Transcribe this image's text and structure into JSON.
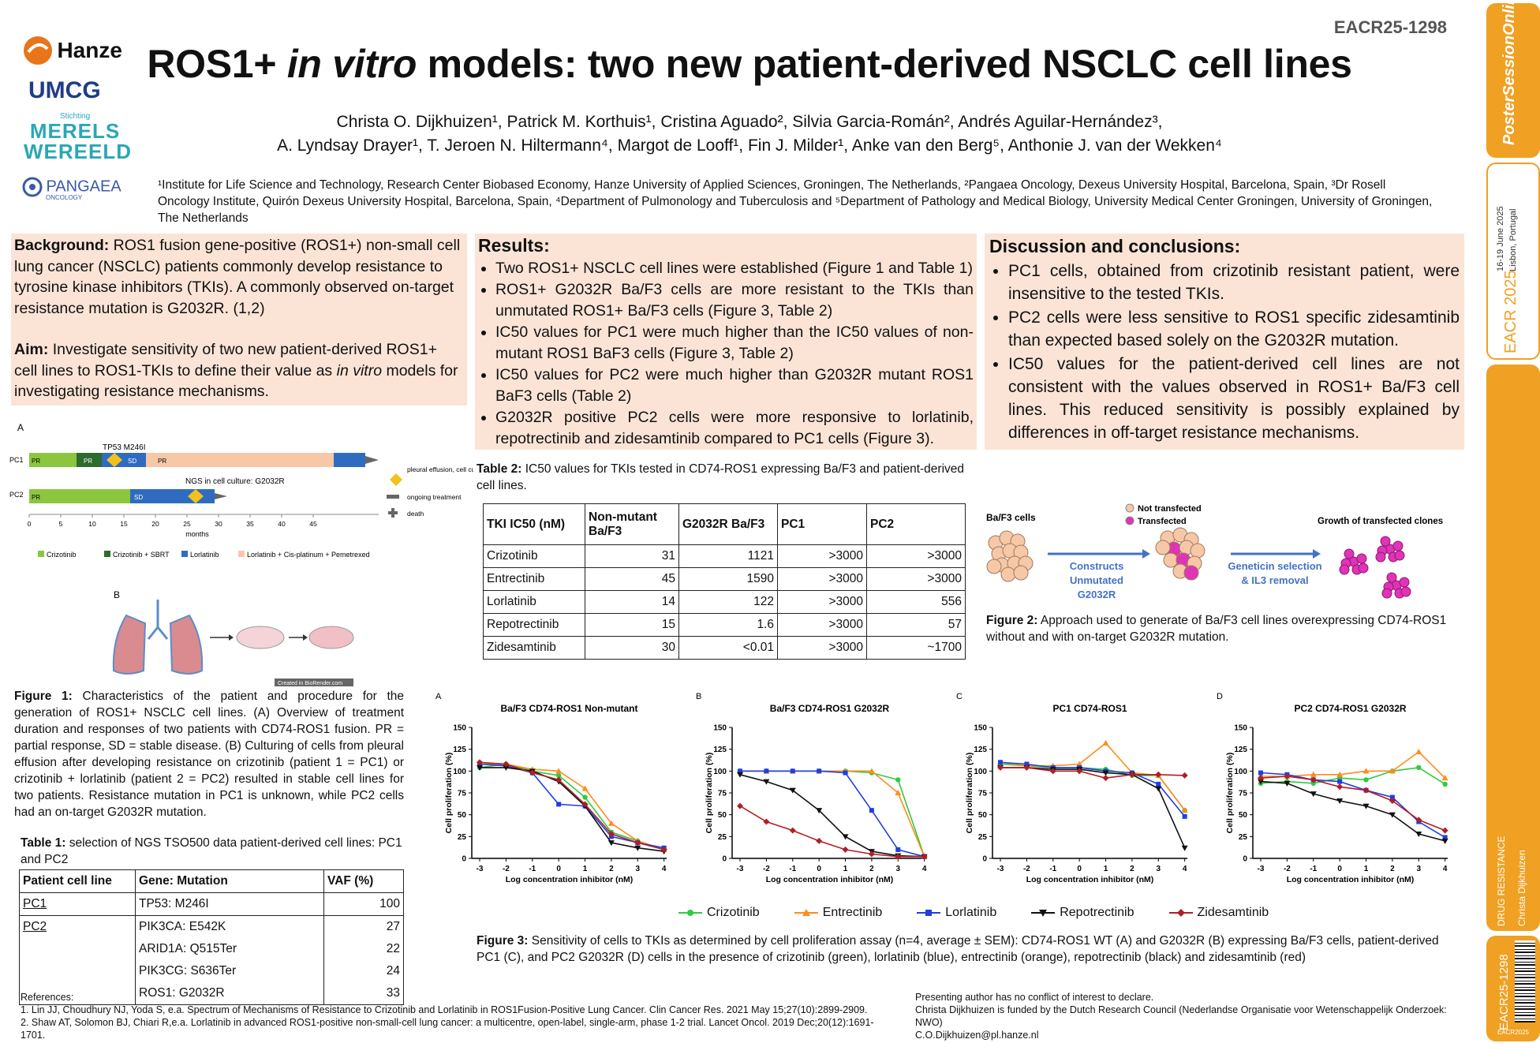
{
  "poster_code": "EACR25-1298",
  "title_parts": {
    "a": "ROS1+ ",
    "b": "in vitro",
    "c": " models: two new patient-derived NSCLC cell lines"
  },
  "logos": {
    "hanze": "Hanze",
    "umcg": "UMCG",
    "merels_small": "Stichting",
    "merels1": "MERELS",
    "merels2": "WEREELD",
    "pangaea": "PANGAEA",
    "pangaea_sub": "ONCOLOGY"
  },
  "authors_line1": "Christa O. Dijkhuizen¹, Patrick M. Korthuis¹, Cristina Aguado², Silvia Garcia-Román², Andrés Aguilar-Hernández³,",
  "authors_line2": "A. Lyndsay Drayer¹, T. Jeroen N. Hiltermann⁴, Margot de Looff¹, Fin J. Milder¹, Anke van den Berg⁵, Anthonie J. van der Wekken⁴",
  "affiliations": "¹Institute for Life Science and Technology, Research Center Biobased Economy, Hanze University of Applied Sciences, Groningen, The Netherlands, ²Pangaea Oncology, Dexeus University Hospital, Barcelona, Spain, ³Dr Rosell Oncology Institute, Quirón Dexeus University Hospital, Barcelona, Spain, ⁴Department of Pulmonology and Tuberculosis and ⁵Department of Pathology and Medical Biology, University Medical Center Groningen, University of Groningen, The Netherlands",
  "background": {
    "head": "Background:",
    "text": " ROS1 fusion gene-positive (ROS1+) non-small cell lung cancer (NSCLC) patients commonly develop resistance to tyrosine kinase inhibitors (TKIs). A commonly observed on-target resistance mutation is G2032R. (1,2)"
  },
  "aim": {
    "head": "Aim:",
    "text1": " Investigate sensitivity of two new patient-derived ROS1+ cell lines to ROS1-TKIs to define their value as ",
    "ital": "in vitro",
    "text2": " models for investigating resistance mechanisms."
  },
  "results": {
    "head": "Results:",
    "items": [
      "Two ROS1+ NSCLC cell lines were established (Figure 1 and Table 1)",
      "ROS1+ G2032R Ba/F3 cells are more resistant to the TKIs than unmutated ROS1+ Ba/F3 cells (Figure 3, Table 2)",
      "IC50 values for PC1 were much higher than the IC50 values of non-mutant ROS1 BaF3 cells (Figure 3, Table 2)",
      "IC50 values for PC2 were much higher than G2032R mutant ROS1 BaF3 cells (Table 2)",
      "G2032R positive PC2 cells were more responsive to lorlatinib, repotrectinib and zidesamtinib compared to PC1 cells (Figure 3)."
    ]
  },
  "discussion": {
    "head": "Discussion and conclusions:",
    "items": [
      "PC1 cells, obtained from crizotinib resistant patient,  were insensitive to the tested TKIs.",
      "PC2 cells were less sensitive to ROS1 specific zidesamtinib than expected based solely on the G2032R mutation.",
      "IC50 values for the patient-derived cell lines are not consistent with the values observed in ROS1+ Ba/F3 cell lines. This reduced sensitivity is possibly explained by differences in off-target resistance mechanisms."
    ]
  },
  "fig1a": {
    "panel": "A",
    "tp53": "TP53 M246I",
    "ngs": "NGS in cell culture: G2032R",
    "rows": [
      "PC1",
      "PC2"
    ],
    "xlabel": "months",
    "ticks": [
      "0",
      "5",
      "10",
      "15",
      "20",
      "25",
      "30",
      "35",
      "40",
      "45"
    ],
    "pc1_labels": [
      "PR",
      "PR",
      "SD",
      "PR"
    ],
    "pc2_labels": [
      "PR",
      "SD"
    ],
    "legend_right": [
      "pleural effusion, cell culture, NGS",
      "ongoing treatment",
      "death"
    ],
    "legend_bottom": [
      "Crizotinib",
      "Crizotinib + SBRT",
      "Lorlatinib",
      "Lorlatinib + Cis-platinum + Pemetrexed"
    ],
    "colors": {
      "crizotinib": "#8cc63f",
      "sbrt": "#2e6b2e",
      "lorlatinib": "#2f6cc0",
      "cispem": "#f6c8a8",
      "diamond": "#f2c21b"
    }
  },
  "fig1b": {
    "panel": "B",
    "credit": "Created in BioRender.com"
  },
  "fig1_caption": {
    "head": "Figure 1:",
    "text": " Characteristics of the patient and procedure for the generation of ROS1+ NSCLC cell lines. (A) Overview of treatment duration and responses of two patients with CD74-ROS1 fusion. PR = partial response, SD = stable disease. (B) Culturing of cells from pleural effusion after developing resistance on crizotinib (patient 1 = PC1) or crizotinib + lorlatinib (patient 2 = PC2) resulted in stable cell lines for two patients. Resistance mutation in PC1 is unknown, while PC2 cells had an on-target G2032R mutation."
  },
  "table1": {
    "caption_head": "Table 1:",
    "caption": " selection of NGS TSO500 data patient-derived cell lines: PC1 and PC2",
    "headers": [
      "Patient cell line",
      "Gene: Mutation",
      "VAF (%)"
    ],
    "rows": [
      [
        "PC1",
        "TP53: M246I",
        "100"
      ],
      [
        "PC2",
        "PIK3CA: E542K",
        "27"
      ],
      [
        "",
        "ARID1A: Q515Ter",
        "22"
      ],
      [
        "",
        "PIK3CG: S636Ter",
        "24"
      ],
      [
        "",
        "ROS1: G2032R",
        "33"
      ]
    ]
  },
  "table2": {
    "caption_head": "Table 2:",
    "caption": " IC50 values for TKIs tested in CD74-ROS1 expressing Ba/F3 and patient-derived cell lines.",
    "headers": [
      "TKI IC50 (nM)",
      "Non-mutant Ba/F3",
      "G2032R Ba/F3",
      "PC1",
      "PC2"
    ],
    "rows": [
      [
        "Crizotinib",
        "31",
        "1121",
        ">3000",
        ">3000"
      ],
      [
        "Entrectinib",
        "45",
        "1590",
        ">3000",
        ">3000"
      ],
      [
        "Lorlatinib",
        "14",
        "122",
        ">3000",
        "556"
      ],
      [
        "Repotrectinib",
        "15",
        "1.6",
        ">3000",
        "57"
      ],
      [
        "Zidesamtinib",
        "30",
        "<0.01",
        ">3000",
        "~1700"
      ]
    ]
  },
  "fig2": {
    "bf3": "Ba/F3 cells",
    "not_tf": "Not transfected",
    "tf": "Transfected",
    "arrow1": [
      "Constructs",
      "Unmutated",
      "G2032R"
    ],
    "arrow2": [
      "Geneticin selection",
      "& IL3 removal"
    ],
    "growth": "Growth of transfected clones",
    "caption_head": "Figure 2:",
    "caption": " Approach used to generate of Ba/F3 cell lines overexpressing CD74-ROS1 without and with on-target G2032R mutation."
  },
  "fig3_caption": {
    "head": "Figure 3:",
    "text": " Sensitivity of cells to TKIs as determined by cell proliferation assay (n=4, average ± SEM): CD74-ROS1 WT (A) and G2032R (B) expressing Ba/F3 cells, patient-derived PC1 (C), and PC2 G2032R (D) cells in the presence of crizotinib (green), lorlatinib (blue), entrectinib (orange), repotrectinib (black) and zidesamtinib (red)"
  },
  "chart_data": [
    {
      "type": "line",
      "panel": "A",
      "title": "Ba/F3 CD74-ROS1 Non-mutant",
      "xlabel": "Log concentration inhibitor (nM)",
      "ylabel": "Cell proliferation (%)",
      "x": [
        -3,
        -2,
        -1,
        0,
        1,
        2,
        3,
        4
      ],
      "xlim": [
        -3.3,
        4.1
      ],
      "ylim": [
        0,
        150
      ],
      "yticks": [
        0,
        25,
        50,
        75,
        100,
        125,
        150
      ],
      "series": [
        {
          "name": "Crizotinib",
          "color": "#2ecc40",
          "values": [
            104,
            108,
            100,
            95,
            70,
            30,
            20,
            10
          ]
        },
        {
          "name": "Entrectinib",
          "color": "#ff8c1a",
          "values": [
            108,
            108,
            102,
            100,
            80,
            40,
            20,
            10
          ]
        },
        {
          "name": "Lorlatinib",
          "color": "#1f3fe0",
          "values": [
            108,
            106,
            98,
            62,
            60,
            25,
            18,
            12
          ]
        },
        {
          "name": "Repotrectinib",
          "color": "#111111",
          "values": [
            104,
            104,
            100,
            88,
            60,
            18,
            12,
            8
          ]
        },
        {
          "name": "Zidesamtinib",
          "color": "#b01f24",
          "values": [
            110,
            108,
            98,
            90,
            62,
            28,
            18,
            10
          ]
        }
      ]
    },
    {
      "type": "line",
      "panel": "B",
      "title": "Ba/F3 CD74-ROS1 G2032R",
      "xlabel": "Log concentration inhibitor (nM)",
      "ylabel": "Cell proliferation (%)",
      "x": [
        -3,
        -2,
        -1,
        0,
        1,
        2,
        3,
        4
      ],
      "xlim": [
        -3.3,
        4.1
      ],
      "ylim": [
        0,
        150
      ],
      "yticks": [
        0,
        25,
        50,
        75,
        100,
        125,
        150
      ],
      "series": [
        {
          "name": "Crizotinib",
          "color": "#2ecc40",
          "values": [
            100,
            100,
            100,
            100,
            100,
            98,
            90,
            2
          ]
        },
        {
          "name": "Entrectinib",
          "color": "#ff8c1a",
          "values": [
            100,
            100,
            100,
            100,
            100,
            100,
            75,
            2
          ]
        },
        {
          "name": "Lorlatinib",
          "color": "#1f3fe0",
          "values": [
            100,
            100,
            100,
            100,
            98,
            55,
            10,
            2
          ]
        },
        {
          "name": "Repotrectinib",
          "color": "#111111",
          "values": [
            96,
            88,
            78,
            55,
            25,
            8,
            3,
            2
          ]
        },
        {
          "name": "Zidesamtinib",
          "color": "#b01f24",
          "values": [
            60,
            42,
            32,
            20,
            10,
            5,
            2,
            2
          ]
        }
      ]
    },
    {
      "type": "line",
      "panel": "C",
      "title": "PC1 CD74-ROS1",
      "xlabel": "Log concentration inhibitor (nM)",
      "ylabel": "Cell proliferation (%)",
      "x": [
        -3,
        -2,
        -1,
        0,
        1,
        2,
        3,
        4
      ],
      "xlim": [
        -3.3,
        4.1
      ],
      "ylim": [
        0,
        150
      ],
      "yticks": [
        0,
        25,
        50,
        75,
        100,
        125,
        150
      ],
      "series": [
        {
          "name": "Crizotinib",
          "color": "#2ecc40",
          "values": [
            108,
            106,
            104,
            104,
            102,
            95,
            95,
            55
          ]
        },
        {
          "name": "Entrectinib",
          "color": "#ff8c1a",
          "values": [
            110,
            106,
            106,
            108,
            132,
            98,
            95,
            55
          ]
        },
        {
          "name": "Lorlatinib",
          "color": "#1f3fe0",
          "values": [
            110,
            108,
            104,
            104,
            100,
            98,
            85,
            48
          ]
        },
        {
          "name": "Repotrectinib",
          "color": "#111111",
          "values": [
            104,
            104,
            102,
            102,
            98,
            96,
            80,
            12
          ]
        },
        {
          "name": "Zidesamtinib",
          "color": "#b01f24",
          "values": [
            104,
            104,
            100,
            100,
            92,
            96,
            96,
            95
          ]
        }
      ]
    },
    {
      "type": "line",
      "panel": "D",
      "title": "PC2 CD74-ROS1 G2032R",
      "xlabel": "Log concentration inhibitor (nM)",
      "ylabel": "Cell proliferation (%)",
      "x": [
        -3,
        -2,
        -1,
        0,
        1,
        2,
        3,
        4
      ],
      "xlim": [
        -3.3,
        4.1
      ],
      "ylim": [
        0,
        150
      ],
      "yticks": [
        0,
        25,
        50,
        75,
        100,
        125,
        150
      ],
      "series": [
        {
          "name": "Crizotinib",
          "color": "#2ecc40",
          "values": [
            86,
            88,
            86,
            92,
            90,
            100,
            104,
            85
          ]
        },
        {
          "name": "Entrectinib",
          "color": "#ff8c1a",
          "values": [
            94,
            94,
            96,
            96,
            100,
            100,
            122,
            92
          ]
        },
        {
          "name": "Lorlatinib",
          "color": "#1f3fe0",
          "values": [
            98,
            96,
            90,
            88,
            78,
            70,
            42,
            24
          ]
        },
        {
          "name": "Repotrectinib",
          "color": "#111111",
          "values": [
            88,
            86,
            74,
            66,
            60,
            50,
            28,
            20
          ]
        },
        {
          "name": "Zidesamtinib",
          "color": "#b01f24",
          "values": [
            92,
            94,
            90,
            82,
            78,
            66,
            44,
            32
          ]
        }
      ]
    }
  ],
  "fig3_legend": [
    "Crizotinib",
    "Entrectinib",
    "Lorlatinib",
    "Repotrectinib",
    "Zidesamtinib"
  ],
  "references": {
    "head": "References:",
    "r1": "1. Lin JJ, Choudhury NJ, Yoda S, e.a. Spectrum of Mechanisms of Resistance to Crizotinib and Lorlatinib in ROS1Fusion-Positive Lung Cancer. Clin Cancer Res. 2021 May 15;27(10):2899-2909.",
    "r2": "2. Shaw AT, Solomon BJ, Chiari R,e.a. Lorlatinib in advanced ROS1-positive non-small-cell lung cancer: a multicentre, open-label, single-arm, phase 1-2 trial. Lancet Oncol. 2019 Dec;20(12):1691-1701."
  },
  "disclosure": {
    "l1": "Presenting author has no conflict of interest to declare.",
    "l2": "Christa Dijkhuizen is funded by the Dutch Research Council (Nederlandse Organisatie voor Wetenschappelijk Onderzoek: NWO)",
    "l3": "C.O.Dijkhuizen@pl.hanze.nl"
  },
  "sidebar": {
    "brand": "PosterSessionOnline",
    "dates": "16-19 June 2025",
    "place": "Lisbon, Portugal",
    "eacr": "EACR 2025",
    "topic": "DRUG RESISTANCE",
    "author": "Christa Dijkhuizen",
    "code": "EACR25-1298",
    "code_small": "EACR2025"
  }
}
